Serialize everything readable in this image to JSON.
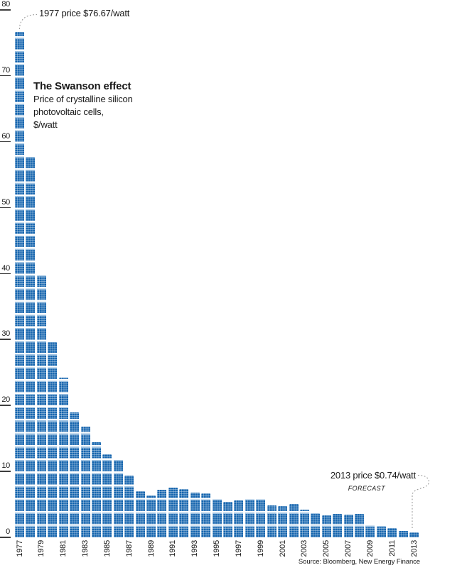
{
  "title": "The Swanson effect",
  "subtitle_lines": [
    "Price of crystalline silicon",
    "photovoltaic cells,",
    "$/watt"
  ],
  "annotations": {
    "first": {
      "text": "1977 price $76.67/watt"
    },
    "last": {
      "text": "2013 price $0.74/watt",
      "tag": "FORECAST"
    }
  },
  "source": "Source: Bloomberg, New Energy Finance",
  "colors": {
    "bar": "#1565ae",
    "bar_cell_line": "rgba(255,255,255,0.33)",
    "bar_module_cap": "#9ec2e2",
    "leader_line": "#999999",
    "text": "#1a1a1a",
    "tick": "#3d3d3d"
  },
  "chart_data": {
    "type": "bar",
    "title": "The Swanson effect",
    "subtitle": "Price of crystalline silicon photovoltaic cells, $/watt",
    "ylabel": "$/watt",
    "ylim": [
      0,
      80
    ],
    "yticks": [
      0,
      10,
      20,
      30,
      40,
      50,
      60,
      70,
      80
    ],
    "grid": false,
    "legend": "none",
    "categories": [
      1977,
      1978,
      1979,
      1980,
      1981,
      1982,
      1983,
      1984,
      1985,
      1986,
      1987,
      1988,
      1989,
      1990,
      1991,
      1992,
      1993,
      1994,
      1995,
      1996,
      1997,
      1998,
      1999,
      2000,
      2001,
      2002,
      2003,
      2004,
      2005,
      2006,
      2007,
      2008,
      2009,
      2010,
      2011,
      2012,
      2013
    ],
    "values": [
      76.67,
      57.7,
      39.7,
      29.6,
      24.2,
      19.0,
      16.8,
      14.4,
      12.6,
      11.8,
      9.4,
      7.0,
      6.4,
      7.2,
      7.5,
      7.3,
      6.8,
      6.7,
      5.9,
      5.4,
      5.6,
      5.9,
      5.9,
      4.8,
      4.7,
      5.1,
      4.2,
      3.7,
      3.3,
      3.5,
      3.4,
      3.5,
      1.9,
      1.7,
      1.4,
      1.0,
      0.74
    ],
    "x_tick_years": [
      1977,
      1979,
      1981,
      1983,
      1985,
      1987,
      1989,
      1991,
      1993,
      1995,
      1997,
      1999,
      2001,
      2003,
      2005,
      2007,
      2009,
      2011,
      2013
    ],
    "notes": [
      "1977 price $76.67/watt",
      "2013 price $0.74/watt FORECAST"
    ]
  }
}
